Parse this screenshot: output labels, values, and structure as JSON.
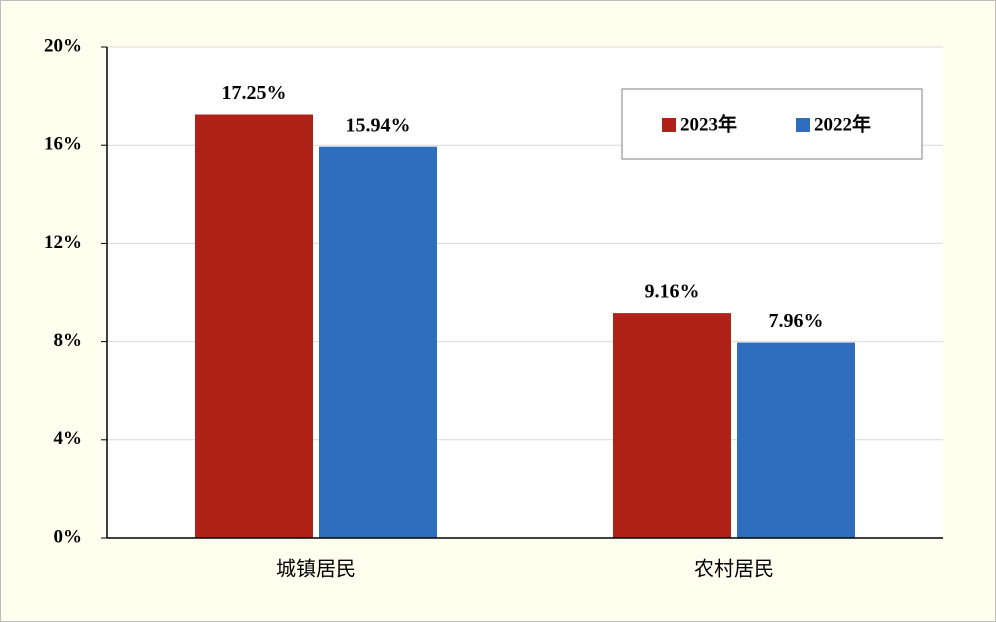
{
  "chart_data": {
    "type": "bar",
    "categories": [
      "城镇居民",
      "农村居民"
    ],
    "series": [
      {
        "name": "2023年",
        "color": "#ae2217",
        "values": [
          17.25,
          9.16
        ],
        "value_labels": [
          "17.25%",
          "9.16%"
        ]
      },
      {
        "name": "2022年",
        "color": "#2e6ebd",
        "values": [
          15.94,
          7.96
        ],
        "value_labels": [
          "15.94%",
          "7.96%"
        ]
      }
    ],
    "ylim": [
      0,
      20
    ],
    "yticks": [
      {
        "value": 0,
        "label": "0%"
      },
      {
        "value": 4,
        "label": "4%"
      },
      {
        "value": 8,
        "label": "8%"
      },
      {
        "value": 12,
        "label": "12%"
      },
      {
        "value": 16,
        "label": "16%"
      },
      {
        "value": 20,
        "label": "20%"
      }
    ],
    "grid": true,
    "legend": "upper-right"
  }
}
